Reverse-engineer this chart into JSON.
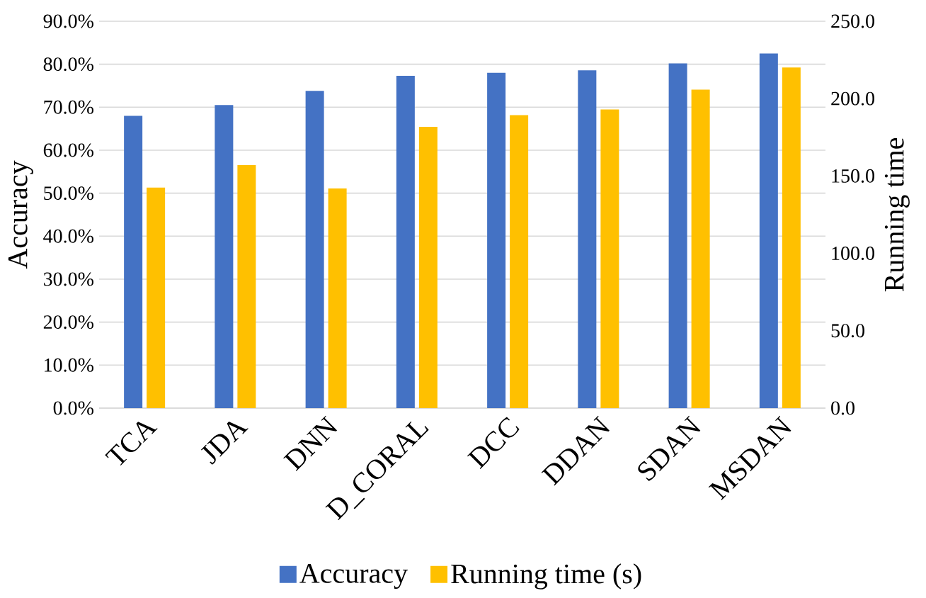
{
  "chart_data": {
    "type": "bar",
    "categories": [
      "TCA",
      "JDA",
      "DNN",
      "D_CORAL",
      "DCC",
      "DDAN",
      "SDAN",
      "MSDAN"
    ],
    "series": [
      {
        "name": "Accuracy",
        "color": "#4472c4",
        "values": [
          68.0,
          70.5,
          73.8,
          77.3,
          78.0,
          78.6,
          80.2,
          82.5
        ]
      },
      {
        "name": "Running time (s)",
        "color": "#ffc000",
        "axis": "y2",
        "values": [
          142.5,
          157.1,
          141.9,
          181.8,
          189.3,
          193.0,
          205.8,
          220.1
        ]
      }
    ],
    "ylabel": "Accuracy",
    "y2label": "Running time",
    "ylim": [
      0,
      90
    ],
    "yticks": [
      {
        "value": 0,
        "label": "0.0%"
      },
      {
        "value": 10,
        "label": "10.0%"
      },
      {
        "value": 20,
        "label": "20.0%"
      },
      {
        "value": 30,
        "label": "30.0%"
      },
      {
        "value": 40,
        "label": "40.0%"
      },
      {
        "value": 50,
        "label": "50.0%"
      },
      {
        "value": 60,
        "label": "60.0%"
      },
      {
        "value": 70,
        "label": "70.0%"
      },
      {
        "value": 80,
        "label": "80.0%"
      },
      {
        "value": 90,
        "label": "90.0%"
      }
    ],
    "y2lim": [
      0,
      250
    ],
    "y2ticks": [
      {
        "value": 0,
        "label": "0.0"
      },
      {
        "value": 50,
        "label": "50.0"
      },
      {
        "value": 100,
        "label": "100.0"
      },
      {
        "value": 150,
        "label": "150.0"
      },
      {
        "value": 200,
        "label": "200.0"
      },
      {
        "value": 250,
        "label": "250.0"
      }
    ],
    "grid": "y",
    "legend": "bottom"
  }
}
